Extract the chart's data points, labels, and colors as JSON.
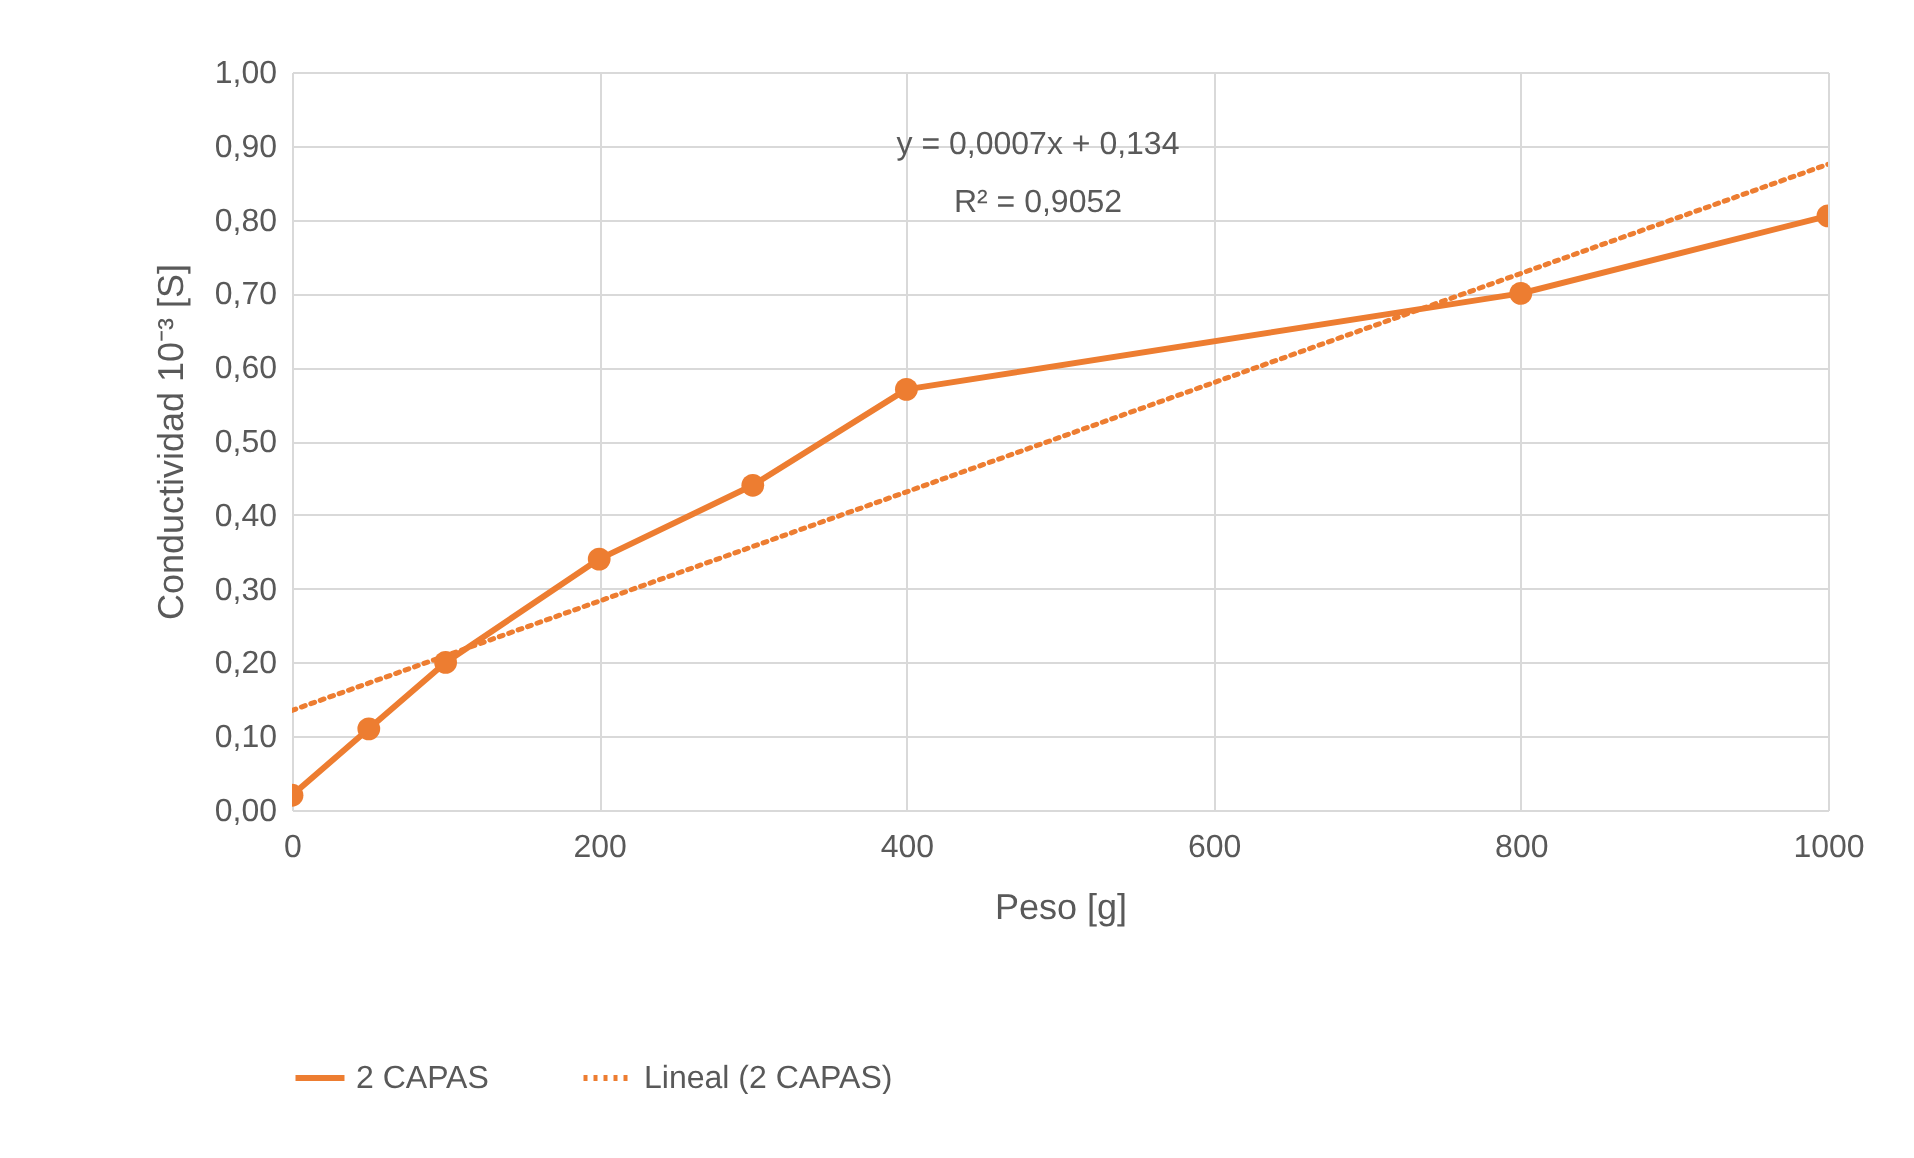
{
  "chart_data": {
    "type": "line",
    "xlabel": "Peso [g]",
    "ylabel": "Conductividad  10⁻³ [S]",
    "annotations": [
      "y = 0,0007x + 0,134",
      "R² = 0,9052"
    ],
    "x": [
      0,
      50,
      100,
      200,
      300,
      400,
      800,
      1000
    ],
    "series": [
      {
        "name": "2 CAPAS",
        "color": "#ed7d31",
        "values": [
          0.02,
          0.11,
          0.2,
          0.34,
          0.44,
          0.57,
          0.7,
          0.805
        ],
        "marker": "circle",
        "line_style": "solid"
      },
      {
        "name": "Lineal (2 CAPAS)",
        "color": "#ed7d31",
        "type": "line",
        "x": [
          0,
          1000
        ],
        "values": [
          0.135,
          0.875
        ],
        "marker": "none",
        "line_style": "dotted"
      }
    ],
    "xlim": [
      0,
      1000
    ],
    "xticks": [
      0,
      200,
      400,
      600,
      800,
      1000
    ],
    "ylim": [
      0,
      1
    ],
    "yticks": [
      {
        "value": 0,
        "label": "0,00"
      },
      {
        "value": 0.1,
        "label": "0,10"
      },
      {
        "value": 0.2,
        "label": "0,20"
      },
      {
        "value": 0.3,
        "label": "0,30"
      },
      {
        "value": 0.4,
        "label": "0,40"
      },
      {
        "value": 0.5,
        "label": "0,50"
      },
      {
        "value": 0.6,
        "label": "0,60"
      },
      {
        "value": 0.7,
        "label": "0,70"
      },
      {
        "value": 0.8,
        "label": "0,80"
      },
      {
        "value": 0.9,
        "label": "0,90"
      },
      {
        "value": 1,
        "label": "1,00"
      }
    ],
    "grid": true,
    "legend": "bottom"
  }
}
